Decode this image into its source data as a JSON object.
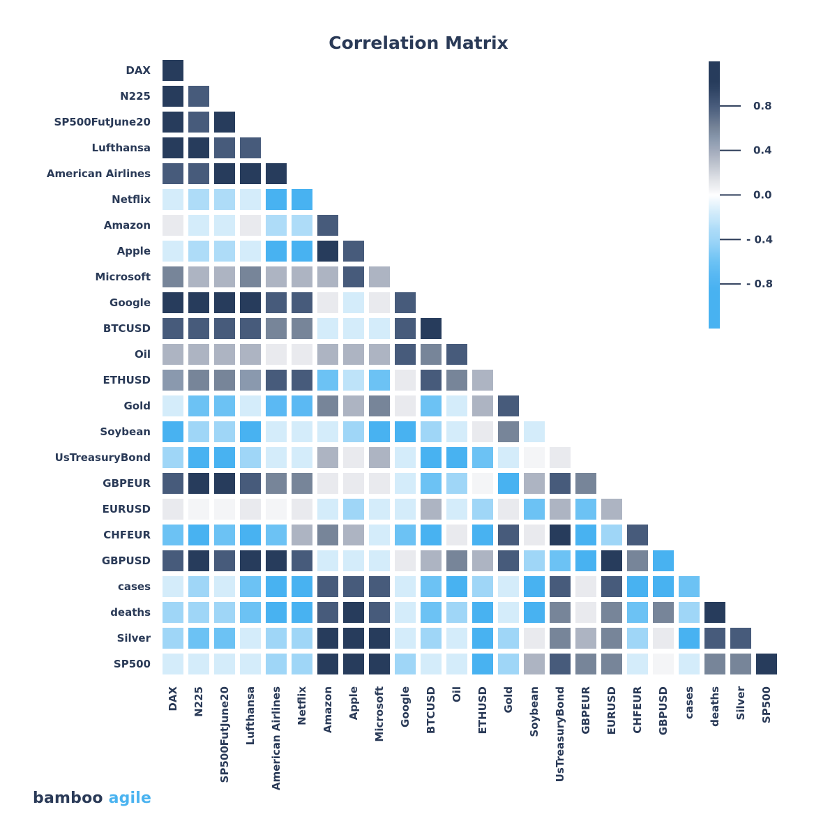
{
  "chart_data": {
    "type": "heatmap",
    "title": "Correlation Matrix",
    "labels": [
      "DAX",
      "N225",
      "SP500FutJune20",
      "Lufthansa",
      "American Airlines",
      "Netflix",
      "Amazon",
      "Apple",
      "Microsoft",
      "Google",
      "BTCUSD",
      "Oil",
      "ETHUSD",
      "Gold",
      "Soybean",
      "UsTreasuryBond",
      "GBPEUR",
      "EURUSD",
      "CHFEUR",
      "GBPUSD",
      "cases",
      "deaths",
      "Silver",
      "SP500"
    ],
    "row_labels": [
      "DAX",
      "N225",
      "SP500FutJune20",
      "Lufthansa",
      "American Airlines",
      "Netflix",
      "Amazon",
      "Apple",
      "Microsoft",
      "Google",
      "BTCUSD",
      "Oil ",
      "ETHUSD",
      "Gold",
      "Soybean",
      "UsTreasuryBond",
      "GBPEUR",
      "EURUSD",
      "CHFEUR",
      "GBPUSD",
      "cases",
      "deaths",
      "Silver",
      "SP500"
    ],
    "mask": "lower-triangle",
    "values": [
      [
        1
      ],
      [
        1,
        0.8
      ],
      [
        1,
        0.8,
        1
      ],
      [
        1,
        1,
        0.8,
        0.8
      ],
      [
        0.8,
        0.8,
        1,
        1,
        1
      ],
      [
        -0.15,
        -0.3,
        -0.3,
        -0.15,
        -0.85,
        -0.85
      ],
      [
        0.1,
        -0.15,
        -0.15,
        0.1,
        -0.3,
        -0.3,
        0.8
      ],
      [
        -0.15,
        -0.3,
        -0.3,
        -0.15,
        -0.85,
        -0.85,
        1,
        0.8
      ],
      [
        0.6,
        0.35,
        0.35,
        0.6,
        0.35,
        0.35,
        0.35,
        0.8,
        0.35
      ],
      [
        1,
        1,
        1,
        1,
        0.8,
        0.8,
        0.1,
        -0.15,
        0.1,
        0.8
      ],
      [
        0.8,
        0.8,
        0.8,
        0.8,
        0.6,
        0.6,
        -0.15,
        -0.15,
        -0.15,
        0.8,
        1
      ],
      [
        0.35,
        0.35,
        0.35,
        0.35,
        0.1,
        0.1,
        0.35,
        0.35,
        0.35,
        0.8,
        0.6,
        0.8
      ],
      [
        0.5,
        0.6,
        0.6,
        0.5,
        0.8,
        0.8,
        -0.6,
        -0.25,
        -0.6,
        0.1,
        0.8,
        0.6,
        0.35
      ],
      [
        -0.15,
        -0.6,
        -0.6,
        -0.15,
        -0.7,
        -0.7,
        0.6,
        0.35,
        0.6,
        0.1,
        -0.6,
        -0.15,
        0.35,
        0.8
      ],
      [
        -0.85,
        -0.4,
        -0.4,
        -0.85,
        -0.15,
        -0.15,
        -0.15,
        -0.4,
        -0.85,
        -0.85,
        -0.4,
        -0.15,
        0.1,
        0.6,
        -0.15
      ],
      [
        -0.4,
        -0.85,
        -0.85,
        -0.4,
        -0.15,
        -0.15,
        0.35,
        0.1,
        0.35,
        -0.15,
        -0.85,
        -0.85,
        -0.6,
        -0.15,
        0.03,
        0.1
      ],
      [
        0.8,
        1,
        1,
        0.8,
        0.6,
        0.6,
        0.1,
        0.1,
        0.1,
        -0.15,
        -0.6,
        -0.4,
        0.03,
        -0.85,
        0.35,
        0.8,
        0.6
      ],
      [
        0.1,
        0.03,
        0.03,
        0.1,
        0.03,
        0.1,
        -0.15,
        -0.4,
        -0.15,
        -0.15,
        0.35,
        -0.15,
        -0.4,
        0.1,
        -0.6,
        0.35,
        -0.6,
        0.35
      ],
      [
        -0.6,
        -0.85,
        -0.6,
        -0.85,
        -0.6,
        0.35,
        0.6,
        0.35,
        -0.15,
        -0.6,
        -0.85,
        0.1,
        -0.85,
        0.8,
        0.1,
        1,
        -0.85,
        -0.4,
        0.8
      ],
      [
        0.8,
        1,
        0.8,
        1,
        1,
        0.8,
        -0.15,
        -0.15,
        -0.15,
        0.1,
        0.35,
        0.6,
        0.35,
        0.8,
        -0.4,
        -0.6,
        -0.85,
        1,
        0.6,
        -0.85
      ],
      [
        -0.15,
        -0.4,
        -0.15,
        -0.6,
        -0.85,
        -0.85,
        0.8,
        0.8,
        0.8,
        -0.15,
        -0.6,
        -0.85,
        -0.4,
        -0.15,
        -0.85,
        0.8,
        0.1,
        0.8,
        -0.85,
        -0.85,
        -0.6
      ],
      [
        -0.4,
        -0.4,
        -0.4,
        -0.6,
        -0.85,
        -0.85,
        0.8,
        1,
        0.8,
        -0.15,
        -0.6,
        -0.4,
        -0.85,
        -0.15,
        -0.85,
        0.6,
        0.1,
        0.6,
        -0.6,
        0.6,
        -0.4,
        1
      ],
      [
        -0.4,
        -0.6,
        -0.6,
        -0.15,
        -0.4,
        -0.4,
        1,
        1,
        1,
        -0.15,
        -0.4,
        -0.15,
        -0.85,
        -0.4,
        0.1,
        0.6,
        0.35,
        0.6,
        -0.4,
        0.1,
        -0.85,
        0.8,
        0.8
      ],
      [
        -0.15,
        -0.15,
        -0.15,
        -0.15,
        -0.4,
        -0.4,
        1,
        1,
        1,
        -0.4,
        -0.15,
        -0.15,
        -0.85,
        -0.4,
        0.35,
        0.8,
        0.6,
        0.6,
        -0.15,
        0.03,
        -0.15,
        0.6,
        0.6,
        1
      ]
    ],
    "colorbar": {
      "range": [
        -1.2,
        1.2
      ],
      "ticks": [
        0.8,
        0.4,
        0.0,
        -0.4,
        -0.8
      ],
      "tick_labels": [
        "0.8",
        "0.4",
        "0.0",
        "- 0.4",
        "- 0.8"
      ]
    },
    "colorscale": [
      [
        -1.0,
        "#48b2f1"
      ],
      [
        -0.85,
        "#48b2f1"
      ],
      [
        -0.7,
        "#5bb9f3"
      ],
      [
        -0.6,
        "#6cc2f4"
      ],
      [
        -0.4,
        "#9fd6f7"
      ],
      [
        -0.3,
        "#aedcf8"
      ],
      [
        -0.25,
        "#bee3f9"
      ],
      [
        -0.15,
        "#d4ecfa"
      ],
      [
        0,
        "#ffffff"
      ],
      [
        0.03,
        "#f4f5f7"
      ],
      [
        0.1,
        "#e9eaee"
      ],
      [
        0.35,
        "#adb4c2"
      ],
      [
        0.5,
        "#8a99ae"
      ],
      [
        0.6,
        "#778599"
      ],
      [
        0.8,
        "#475b7b"
      ],
      [
        1.0,
        "#273c5c"
      ]
    ]
  },
  "logo": {
    "part1": "bamboo",
    "part2": "agile"
  }
}
